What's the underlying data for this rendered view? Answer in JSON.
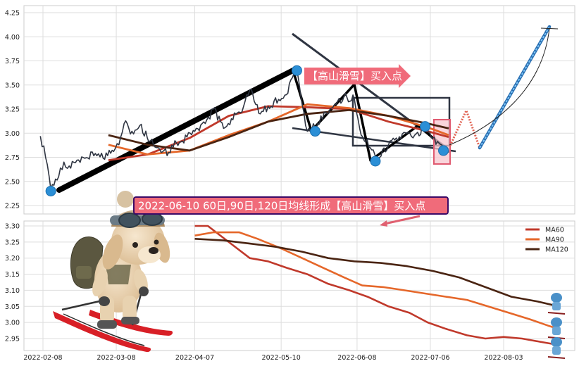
{
  "colors": {
    "price": "#2f3542",
    "ma60": "#c0392b",
    "ma90": "#e5672a",
    "ma120": "#4a2412",
    "pivot": "#2b8fd6",
    "arrow": "#f06b7a",
    "annotation_box": "#f06b7a",
    "annotation_border": "#3b0a67",
    "forecast_up": "#4a9fe0",
    "forecast_zigzag": "#e06050"
  },
  "chart_data": [
    {
      "type": "line",
      "panel": "price",
      "ylim": [
        2.15,
        4.3
      ],
      "yticks": [
        "2.25",
        "2.50",
        "2.75",
        "3.00",
        "3.25",
        "3.50",
        "3.75",
        "4.00",
        "4.25"
      ],
      "xlim": [
        "2022-02-01",
        "2022-08-26"
      ],
      "grid": true,
      "series": [
        {
          "key": "price",
          "points": [
            [
              "2022-02-07",
              2.97
            ],
            [
              "2022-02-09",
              2.75
            ],
            [
              "2022-02-11",
              2.42
            ],
            [
              "2022-02-14",
              2.55
            ],
            [
              "2022-02-16",
              2.7
            ],
            [
              "2022-02-18",
              2.66
            ],
            [
              "2022-02-21",
              2.72
            ],
            [
              "2022-02-24",
              2.74
            ],
            [
              "2022-02-28",
              2.79
            ],
            [
              "2022-03-03",
              2.74
            ],
            [
              "2022-03-07",
              2.81
            ],
            [
              "2022-03-09",
              2.88
            ],
            [
              "2022-03-11",
              3.1
            ],
            [
              "2022-03-14",
              3.02
            ],
            [
              "2022-03-17",
              3.08
            ],
            [
              "2022-03-21",
              2.92
            ],
            [
              "2022-03-24",
              2.85
            ],
            [
              "2022-03-28",
              2.8
            ],
            [
              "2022-03-31",
              2.9
            ],
            [
              "2022-04-04",
              2.96
            ],
            [
              "2022-04-07",
              3.02
            ],
            [
              "2022-04-11",
              3.1
            ],
            [
              "2022-04-14",
              3.25
            ],
            [
              "2022-04-18",
              3.05
            ],
            [
              "2022-04-21",
              3.15
            ],
            [
              "2022-04-25",
              3.22
            ],
            [
              "2022-04-28",
              3.45
            ],
            [
              "2022-05-02",
              3.2
            ],
            [
              "2022-05-05",
              3.28
            ],
            [
              "2022-05-09",
              3.35
            ],
            [
              "2022-05-12",
              3.4
            ],
            [
              "2022-05-16",
              3.66
            ],
            [
              "2022-05-18",
              3.3
            ],
            [
              "2022-05-20",
              3.02
            ],
            [
              "2022-05-24",
              3.1
            ],
            [
              "2022-05-27",
              3.22
            ],
            [
              "2022-05-31",
              3.3
            ],
            [
              "2022-06-03",
              3.38
            ],
            [
              "2022-06-07",
              3.35
            ],
            [
              "2022-06-09",
              3.05
            ],
            [
              "2022-06-13",
              2.85
            ],
            [
              "2022-06-16",
              2.72
            ],
            [
              "2022-06-20",
              2.88
            ],
            [
              "2022-06-23",
              2.95
            ],
            [
              "2022-06-27",
              3.0
            ],
            [
              "2022-06-30",
              2.98
            ],
            [
              "2022-07-04",
              3.06
            ],
            [
              "2022-07-07",
              2.95
            ],
            [
              "2022-07-11",
              2.84
            ],
            [
              "2022-07-13",
              2.8
            ]
          ]
        },
        {
          "key": "ma60",
          "points": [
            [
              "2022-03-05",
              2.72
            ],
            [
              "2022-03-20",
              2.78
            ],
            [
              "2022-04-05",
              2.95
            ],
            [
              "2022-04-20",
              3.18
            ],
            [
              "2022-05-05",
              3.28
            ],
            [
              "2022-05-20",
              3.27
            ],
            [
              "2022-06-05",
              3.25
            ],
            [
              "2022-06-20",
              3.12
            ],
            [
              "2022-07-05",
              3.02
            ],
            [
              "2022-07-13",
              2.96
            ]
          ]
        },
        {
          "key": "ma90",
          "points": [
            [
              "2022-03-05",
              2.88
            ],
            [
              "2022-03-20",
              2.78
            ],
            [
              "2022-04-05",
              2.82
            ],
            [
              "2022-04-20",
              2.98
            ],
            [
              "2022-05-05",
              3.12
            ],
            [
              "2022-05-20",
              3.3
            ],
            [
              "2022-06-05",
              3.26
            ],
            [
              "2022-06-20",
              3.18
            ],
            [
              "2022-07-05",
              3.06
            ],
            [
              "2022-07-13",
              2.98
            ]
          ]
        },
        {
          "key": "ma120",
          "points": [
            [
              "2022-03-05",
              2.98
            ],
            [
              "2022-03-20",
              2.88
            ],
            [
              "2022-04-05",
              2.82
            ],
            [
              "2022-04-20",
              2.96
            ],
            [
              "2022-05-05",
              3.12
            ],
            [
              "2022-05-20",
              3.2
            ],
            [
              "2022-06-05",
              3.24
            ],
            [
              "2022-06-20",
              3.18
            ],
            [
              "2022-07-05",
              3.1
            ],
            [
              "2022-07-13",
              3.05
            ]
          ]
        }
      ],
      "pivots": [
        [
          "2022-02-11",
          2.4
        ],
        [
          "2022-05-16",
          3.65
        ],
        [
          "2022-05-23",
          3.02
        ],
        [
          "2022-06-15",
          2.71
        ],
        [
          "2022-07-04",
          3.07
        ],
        [
          "2022-07-11",
          2.82
        ]
      ],
      "annotation": "【高山滑雪】买入点"
    },
    {
      "type": "line",
      "panel": "moving-averages",
      "ylim": [
        2.92,
        3.32
      ],
      "yticks": [
        "2.95",
        "3.00",
        "3.05",
        "3.10",
        "3.15",
        "3.20",
        "3.25",
        "3.30"
      ],
      "xticks": [
        "2022-02-08",
        "2022-03-08",
        "2022-04-07",
        "2022-05-10",
        "2022-06-08",
        "2022-07-06",
        "2022-08-03"
      ],
      "grid": true,
      "legend_position": "top-right",
      "series": [
        {
          "key": "ma60",
          "name": "MA60",
          "points": [
            [
              "2022-04-07",
              3.3
            ],
            [
              "2022-04-12",
              3.3
            ],
            [
              "2022-04-20",
              3.25
            ],
            [
              "2022-04-28",
              3.2
            ],
            [
              "2022-05-05",
              3.19
            ],
            [
              "2022-05-12",
              3.17
            ],
            [
              "2022-05-20",
              3.15
            ],
            [
              "2022-05-28",
              3.12
            ],
            [
              "2022-06-05",
              3.1
            ],
            [
              "2022-06-12",
              3.08
            ],
            [
              "2022-06-20",
              3.05
            ],
            [
              "2022-06-28",
              3.03
            ],
            [
              "2022-07-05",
              3.0
            ],
            [
              "2022-07-12",
              2.98
            ],
            [
              "2022-07-20",
              2.96
            ],
            [
              "2022-07-27",
              2.95
            ],
            [
              "2022-08-03",
              2.955
            ],
            [
              "2022-08-10",
              2.95
            ],
            [
              "2022-08-17",
              2.94
            ],
            [
              "2022-08-24",
              2.93
            ]
          ]
        },
        {
          "key": "ma90",
          "name": "MA90",
          "points": [
            [
              "2022-04-07",
              3.27
            ],
            [
              "2022-04-14",
              3.28
            ],
            [
              "2022-04-24",
              3.28
            ],
            [
              "2022-05-01",
              3.26
            ],
            [
              "2022-05-10",
              3.23
            ],
            [
              "2022-05-18",
              3.2
            ],
            [
              "2022-05-26",
              3.17
            ],
            [
              "2022-06-03",
              3.14
            ],
            [
              "2022-06-10",
              3.115
            ],
            [
              "2022-06-18",
              3.11
            ],
            [
              "2022-06-26",
              3.1
            ],
            [
              "2022-07-04",
              3.09
            ],
            [
              "2022-07-12",
              3.08
            ],
            [
              "2022-07-20",
              3.07
            ],
            [
              "2022-07-28",
              3.05
            ],
            [
              "2022-08-05",
              3.03
            ],
            [
              "2022-08-13",
              3.01
            ],
            [
              "2022-08-20",
              2.99
            ],
            [
              "2022-08-24",
              2.98
            ]
          ]
        },
        {
          "key": "ma120",
          "name": "MA120",
          "points": [
            [
              "2022-04-07",
              3.26
            ],
            [
              "2022-04-18",
              3.255
            ],
            [
              "2022-04-28",
              3.245
            ],
            [
              "2022-05-08",
              3.235
            ],
            [
              "2022-05-18",
              3.22
            ],
            [
              "2022-05-28",
              3.2
            ],
            [
              "2022-06-07",
              3.19
            ],
            [
              "2022-06-17",
              3.185
            ],
            [
              "2022-06-27",
              3.175
            ],
            [
              "2022-07-07",
              3.16
            ],
            [
              "2022-07-17",
              3.14
            ],
            [
              "2022-07-27",
              3.11
            ],
            [
              "2022-08-06",
              3.08
            ],
            [
              "2022-08-16",
              3.065
            ],
            [
              "2022-08-24",
              3.05
            ]
          ]
        }
      ],
      "annotation": "2022-06-10 60日,90日,120日均线形成【高山滑雪】买入点"
    }
  ]
}
